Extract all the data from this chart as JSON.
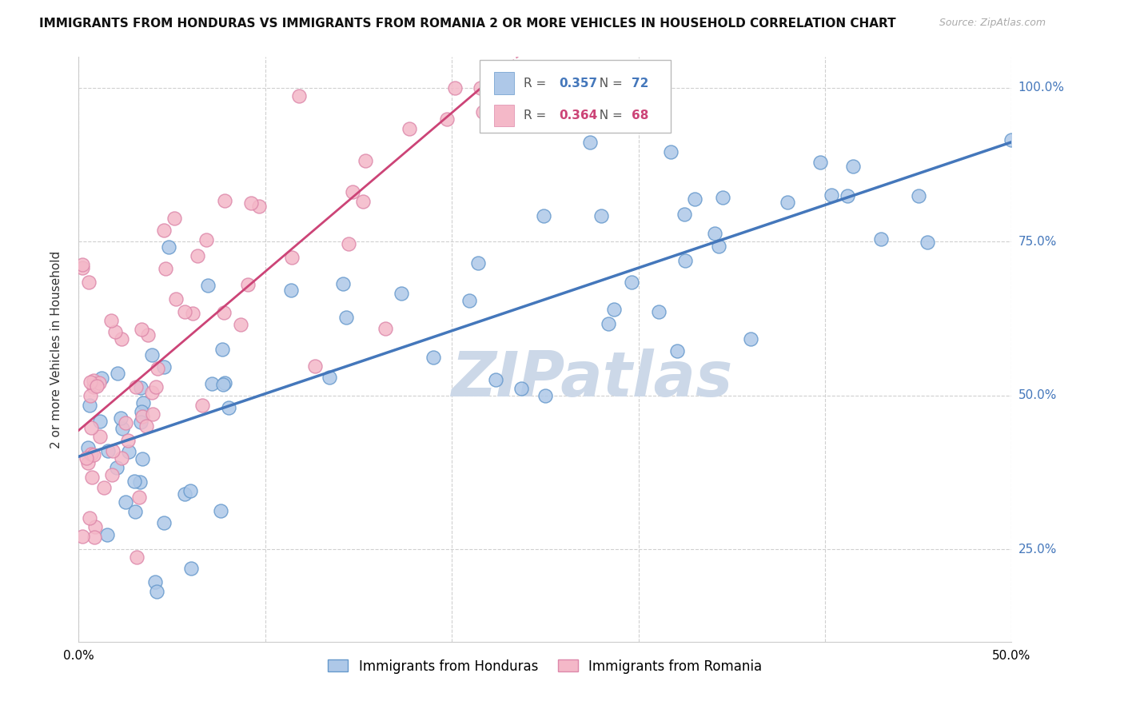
{
  "title": "IMMIGRANTS FROM HONDURAS VS IMMIGRANTS FROM ROMANIA 2 OR MORE VEHICLES IN HOUSEHOLD CORRELATION CHART",
  "source": "Source: ZipAtlas.com",
  "xlabel_blue": "Immigrants from Honduras",
  "xlabel_pink": "Immigrants from Romania",
  "ylabel": "2 or more Vehicles in Household",
  "xlim": [
    0.0,
    0.5
  ],
  "ylim": [
    0.1,
    1.05
  ],
  "yticks": [
    0.25,
    0.5,
    0.75,
    1.0
  ],
  "ytick_labels": [
    "25.0%",
    "50.0%",
    "75.0%",
    "100.0%"
  ],
  "xticks": [
    0.0,
    0.1,
    0.2,
    0.3,
    0.4,
    0.5
  ],
  "xtick_labels": [
    "0.0%",
    "",
    "",
    "",
    "",
    "50.0%"
  ],
  "R_blue": 0.357,
  "N_blue": 72,
  "R_pink": 0.364,
  "N_pink": 68,
  "blue_color": "#aec8e8",
  "pink_color": "#f4b8c8",
  "blue_edge_color": "#6699cc",
  "pink_edge_color": "#dd88aa",
  "blue_line_color": "#4477bb",
  "pink_line_color": "#cc4477",
  "watermark_color": "#ccd8e8",
  "watermark": "ZIPatlas"
}
